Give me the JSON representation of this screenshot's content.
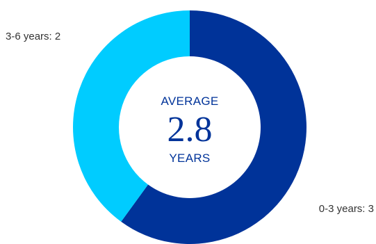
{
  "chart_data": {
    "type": "pie",
    "donut": true,
    "slices": [
      {
        "label": "0-3 years: 3",
        "value": 3,
        "color": "#003399"
      },
      {
        "label": "3-6 years: 2",
        "value": 2,
        "color": "#00CCFF"
      }
    ],
    "center": {
      "top": "AVERAGE",
      "value": "2.8",
      "bottom": "YEARS",
      "color": "#003399"
    },
    "legend": "none"
  }
}
